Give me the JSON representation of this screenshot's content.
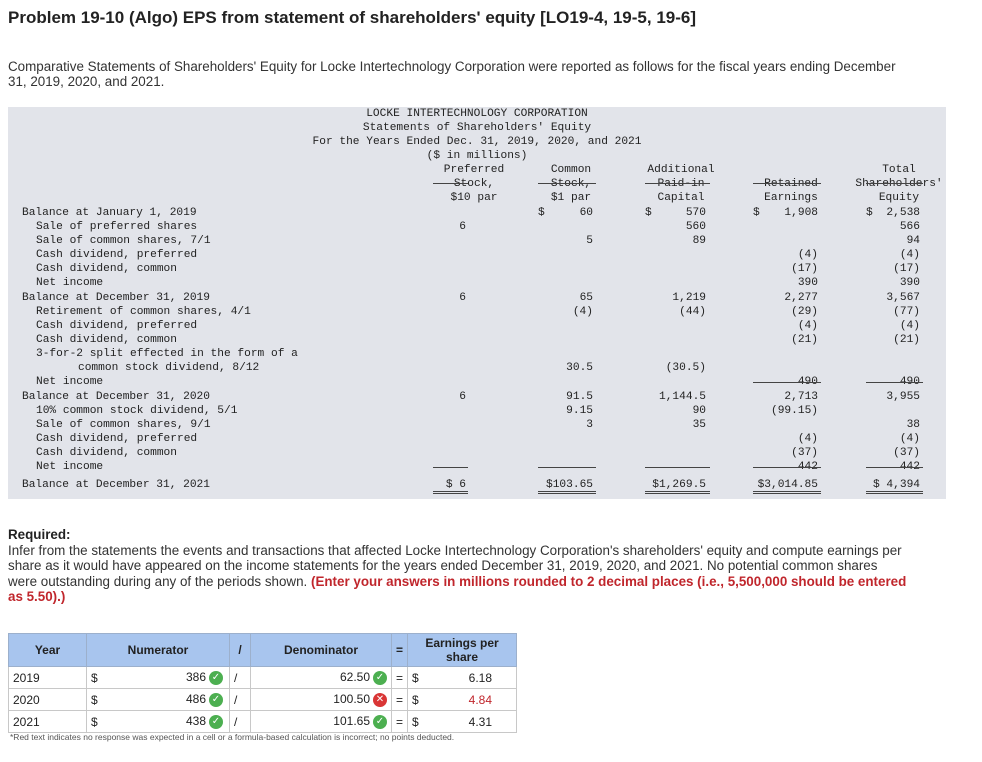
{
  "title": "Problem 19-10 (Algo) EPS from statement of shareholders' equity [LO19-4, 19-5, 19-6]",
  "intro": "Comparative Statements of Shareholders' Equity for Locke Intertechnology Corporation were reported as follows for the fiscal years ending December 31, 2019, 2020, and 2021.",
  "statement": {
    "header": [
      "LOCKE INTERTECHNOLOGY CORPORATION",
      "Statements of Shareholders' Equity",
      "For the Years Ended Dec. 31, 2019, 2020, and 2021",
      "($ in millions)"
    ],
    "columns": [
      [
        "Preferred",
        "Stock,",
        "$10 par"
      ],
      [
        "Common",
        "Stock,",
        "$1 par"
      ],
      [
        "Additional",
        "Paid-in",
        "Capital"
      ],
      [
        "Retained",
        "Earnings"
      ],
      [
        "Total",
        "Shareholders'",
        "Equity"
      ]
    ],
    "rows": [
      {
        "label": "Balance at January 1, 2019",
        "cells": [
          "",
          "60",
          "570",
          "1,908",
          "2,538"
        ],
        "dollar": [
          "",
          "$",
          "$",
          "$",
          "$"
        ]
      },
      {
        "label": "Sale of preferred shares",
        "cells": [
          "6",
          "",
          "560",
          "",
          "566"
        ]
      },
      {
        "label": "Sale of common shares, 7/1",
        "cells": [
          "",
          "5",
          "89",
          "",
          "94"
        ]
      },
      {
        "label": "Cash dividend, preferred",
        "cells": [
          "",
          "",
          "",
          "(4)",
          "(4)"
        ]
      },
      {
        "label": "Cash dividend, common",
        "cells": [
          "",
          "",
          "",
          "(17)",
          "(17)"
        ]
      },
      {
        "label": "Net income",
        "cells": [
          "",
          "",
          "",
          "390",
          "390"
        ]
      },
      {
        "label": "Balance at December 31, 2019",
        "cells": [
          "6",
          "65",
          "1,219",
          "2,277",
          "3,567"
        ]
      },
      {
        "label": "Retirement of common shares, 4/1",
        "cells": [
          "",
          "(4)",
          "(44)",
          "(29)",
          "(77)"
        ]
      },
      {
        "label": "Cash dividend, preferred",
        "cells": [
          "",
          "",
          "",
          "(4)",
          "(4)"
        ]
      },
      {
        "label": "Cash dividend, common",
        "cells": [
          "",
          "",
          "",
          "(21)",
          "(21)"
        ]
      },
      {
        "label": "3-for-2 split effected in the form of a",
        "cells": [
          "",
          "",
          "",
          "",
          ""
        ]
      },
      {
        "label": "common stock dividend, 8/12",
        "cells": [
          "",
          "30.5",
          "(30.5)",
          "",
          ""
        ]
      },
      {
        "label": "Net income",
        "cells": [
          "",
          "",
          "",
          "490",
          "490"
        ]
      },
      {
        "label": "Balance at December 31, 2020",
        "cells": [
          "6",
          "91.5",
          "1,144.5",
          "2,713",
          "3,955"
        ]
      },
      {
        "label": "10% common stock dividend, 5/1",
        "cells": [
          "",
          "9.15",
          "90",
          "(99.15)",
          ""
        ]
      },
      {
        "label": "Sale of common shares, 9/1",
        "cells": [
          "",
          "3",
          "35",
          "",
          "38"
        ]
      },
      {
        "label": "Cash dividend, preferred",
        "cells": [
          "",
          "",
          "",
          "(4)",
          "(4)"
        ]
      },
      {
        "label": "Cash dividend, common",
        "cells": [
          "",
          "",
          "",
          "(37)",
          "(37)"
        ]
      },
      {
        "label": "Net income",
        "cells": [
          "",
          "",
          "",
          "442",
          "442"
        ]
      },
      {
        "label": "Balance at December 31, 2021",
        "cells": [
          "$ 6",
          "$103.65",
          "$1,269.5",
          "$3,014.85",
          "$ 4,394"
        ]
      }
    ]
  },
  "required": {
    "heading": "Required:",
    "text": "Infer from the statements the events and transactions that affected Locke Intertechnology Corporation's shareholders' equity and compute earnings per share as it would have appeared on the income statements for the years ended December 31, 2019, 2020, and 2021. No potential common shares were outstanding during any of the periods shown.",
    "instruction": "(Enter your answers in millions rounded to 2 decimal places (i.e., 5,500,000 should be entered as 5.50).)"
  },
  "eps_table": {
    "headers": {
      "year": "Year",
      "numerator": "Numerator",
      "slash": "/",
      "denominator": "Denominator",
      "equals": "=",
      "eps": "Earnings per share"
    },
    "rows": [
      {
        "year": "2019",
        "cur": "$",
        "numerator": "386",
        "num_status": "correct",
        "slash": "/",
        "denominator": "62.50",
        "den_status": "correct",
        "equals": "=",
        "cur2": "$",
        "eps": "6.18",
        "eps_status": "ok"
      },
      {
        "year": "2020",
        "cur": "$",
        "numerator": "486",
        "num_status": "correct",
        "slash": "/",
        "denominator": "100.50",
        "den_status": "incorrect",
        "equals": "=",
        "cur2": "$",
        "eps": "4.84",
        "eps_status": "red"
      },
      {
        "year": "2021",
        "cur": "$",
        "numerator": "438",
        "num_status": "correct",
        "slash": "/",
        "denominator": "101.65",
        "den_status": "correct",
        "equals": "=",
        "cur2": "$",
        "eps": "4.31",
        "eps_status": "ok"
      }
    ]
  },
  "footnote": "*Red text indicates no response was expected in a cell or a formula-based calculation is incorrect; no points deducted.",
  "colors": {
    "header_blue": "#a8c5ee",
    "statement_bg": "#e2e4ea",
    "correct_green": "#4caf50",
    "incorrect_red": "#d93636",
    "red_text": "#c0262c"
  },
  "icons": {
    "correct": "check-circle-icon",
    "incorrect": "x-circle-icon"
  }
}
